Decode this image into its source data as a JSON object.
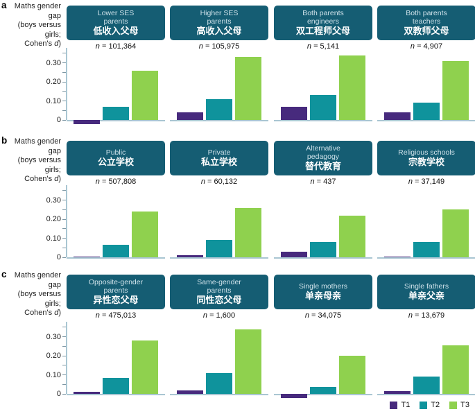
{
  "figure": {
    "ylabel_lines": [
      "Maths gender",
      "gap",
      "(boys versus girls;",
      [
        "Cohen's ",
        "d",
        ")"
      ]
    ],
    "legend": [
      {
        "label": "T1",
        "color": "#472a7d"
      },
      {
        "label": "T2",
        "color": "#0f939c"
      },
      {
        "label": "T3",
        "color": "#8fd14e"
      }
    ],
    "colors": {
      "header_bg": "#155d73",
      "header_text": "#cfe2ea",
      "header_text_zh": "#ffffff",
      "axis": "#a9c6d2",
      "tick": "#7c96a3"
    }
  },
  "chart_data": [
    {
      "type": "bar",
      "panel": "a",
      "ylabel": "Maths gender gap (boys versus girls; Cohen's d)",
      "ylim": [
        -0.04,
        0.38
      ],
      "yticks": [
        0,
        0.1,
        0.2,
        0.3
      ],
      "ytick_labels": [
        "0",
        "0.10",
        "0.20",
        "0.30"
      ],
      "series": [
        "T1",
        "T2",
        "T3"
      ],
      "groups": [
        {
          "label_en": "Lower SES parents",
          "label_zh": "低收入父母",
          "n": "n = 101,364",
          "values": [
            -0.02,
            0.07,
            0.26
          ]
        },
        {
          "label_en": "Higher SES parents",
          "label_zh": "高收入父母",
          "n": "n = 105,975",
          "values": [
            0.04,
            0.11,
            0.33
          ]
        },
        {
          "label_en": "Both parents engineers",
          "label_zh": "双工程师父母",
          "n": "n = 5,141",
          "values": [
            0.07,
            0.13,
            0.34
          ]
        },
        {
          "label_en": "Both parents teachers",
          "label_zh": "双教师父母",
          "n": "n = 4,907",
          "values": [
            0.04,
            0.09,
            0.31
          ]
        }
      ]
    },
    {
      "type": "bar",
      "panel": "b",
      "ylabel": "Maths gender gap (boys versus girls; Cohen's d)",
      "ylim": [
        -0.04,
        0.38
      ],
      "yticks": [
        0,
        0.1,
        0.2,
        0.3
      ],
      "ytick_labels": [
        "0",
        "0.10",
        "0.20",
        "0.30"
      ],
      "series": [
        "T1",
        "T2",
        "T3"
      ],
      "groups": [
        {
          "label_en": "Public",
          "label_zh": "公立学校",
          "n": "n = 507,808",
          "values": [
            0.005,
            0.065,
            0.24
          ]
        },
        {
          "label_en": "Private",
          "label_zh": "私立学校",
          "n": "n = 60,132",
          "values": [
            0.01,
            0.09,
            0.26
          ]
        },
        {
          "label_en": "Alternative pedagogy",
          "label_zh": "替代教育",
          "n": "n = 437",
          "values": [
            0.03,
            0.08,
            0.22
          ]
        },
        {
          "label_en": "Religious schools",
          "label_zh": "宗教学校",
          "n": "n = 37,149",
          "values": [
            0.005,
            0.08,
            0.25
          ]
        }
      ]
    },
    {
      "type": "bar",
      "panel": "c",
      "ylabel": "Maths gender gap (boys versus girls; Cohen's d)",
      "ylim": [
        -0.04,
        0.38
      ],
      "yticks": [
        0,
        0.1,
        0.2,
        0.3
      ],
      "ytick_labels": [
        "0",
        "0.10",
        "0.20",
        "0.30"
      ],
      "series": [
        "T1",
        "T2",
        "T3"
      ],
      "groups": [
        {
          "label_en": "Opposite-gender parents",
          "label_zh": "异性恋父母",
          "n": "n = 475,013",
          "values": [
            0.01,
            0.085,
            0.28
          ]
        },
        {
          "label_en": "Same-gender parents",
          "label_zh": "同性恋父母",
          "n": "n = 1,600",
          "values": [
            0.02,
            0.11,
            0.34
          ]
        },
        {
          "label_en": "Single mothers",
          "label_zh": "单亲母亲",
          "n": "n = 34,075",
          "values": [
            -0.02,
            0.035,
            0.2
          ]
        },
        {
          "label_en": "Single fathers",
          "label_zh": "单亲父亲",
          "n": "n = 13,679",
          "values": [
            0.015,
            0.09,
            0.255
          ]
        }
      ]
    }
  ]
}
